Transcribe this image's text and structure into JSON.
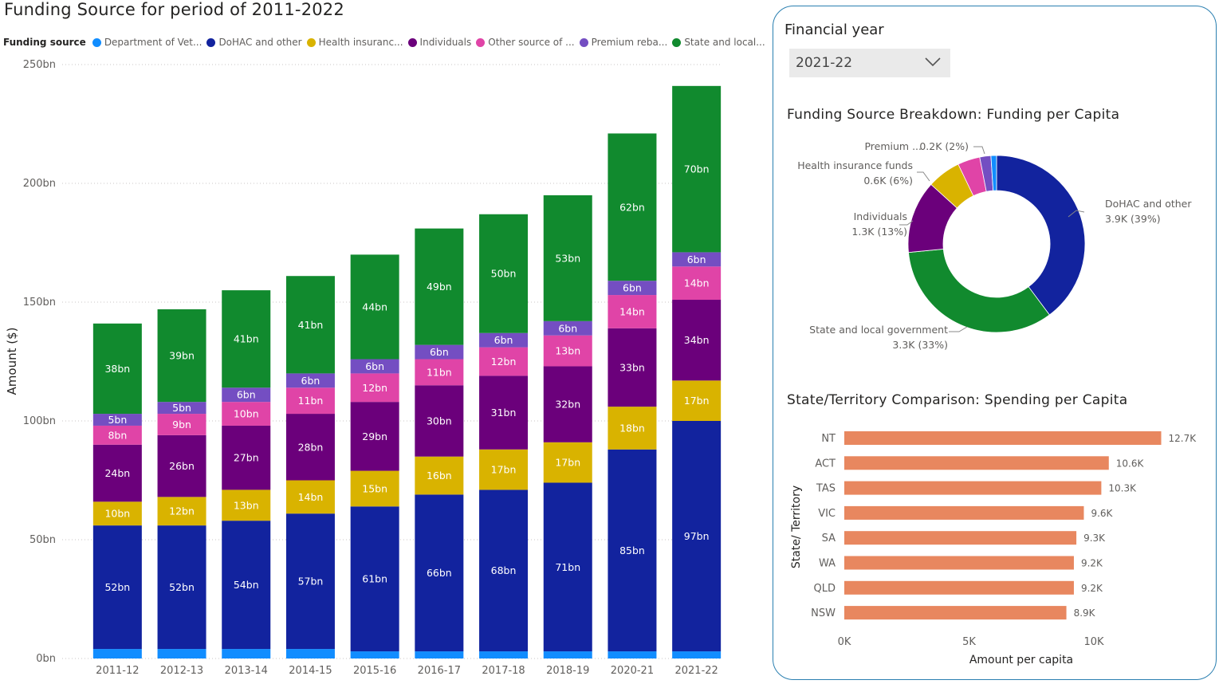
{
  "main_chart": {
    "title": "Funding Source for period of 2011-2022",
    "legend_title": "Funding source",
    "legend_labels": [
      "Department of Vet...",
      "DoHAC and other",
      "Health insuranc...",
      "Individuals",
      "Other source of ...",
      "Premium reba...",
      "State and local..."
    ],
    "y_axis_label": "Amount ($)",
    "y_ticks": [
      "0bn",
      "50bn",
      "100bn",
      "150bn",
      "200bn",
      "250bn"
    ]
  },
  "filter": {
    "label": "Financial year",
    "selected": "2021-22"
  },
  "donut": {
    "title": "Funding Source Breakdown: Funding per Capita",
    "labels": [
      {
        "name": "DoHAC and other",
        "value": "3.9K (39%)"
      },
      {
        "name": "State and local government",
        "value": "3.3K (33%)"
      },
      {
        "name": "Individuals",
        "value": "1.3K (13%)"
      },
      {
        "name": "Health insurance funds",
        "value": "0.6K (6%)"
      },
      {
        "name": "Premium ...",
        "value": "0.2K (2%)"
      }
    ]
  },
  "bar_chart": {
    "title": "State/Territory Comparison: Spending per Capita",
    "y_axis_label": "State/ Territory",
    "x_axis_label": "Amount per capita",
    "x_ticks": [
      "0K",
      "5K",
      "10K"
    ]
  },
  "chart_data": [
    {
      "type": "bar",
      "stacked": true,
      "title": "Funding Source for period of 2011-2022",
      "ylabel": "Amount ($)",
      "xlabel": "",
      "ylim": [
        0,
        250
      ],
      "unit": "bn",
      "grid": true,
      "legend": "top-left",
      "categories": [
        "2011-12",
        "2012-13",
        "2013-14",
        "2014-15",
        "2015-16",
        "2016-17",
        "2017-18",
        "2018-19",
        "2020-21",
        "2021-22"
      ],
      "series": [
        {
          "name": "Department of Vet...",
          "color": "#118dff",
          "values": [
            4,
            4,
            4,
            4,
            3,
            3,
            3,
            3,
            3,
            3
          ],
          "labels": [
            "",
            "",
            "",
            "",
            "",
            "",
            "",
            "",
            "",
            ""
          ]
        },
        {
          "name": "DoHAC and other",
          "color": "#12239e",
          "values": [
            52,
            52,
            54,
            57,
            61,
            66,
            68,
            71,
            85,
            97
          ],
          "labels": [
            "52bn",
            "52bn",
            "54bn",
            "57bn",
            "61bn",
            "66bn",
            "68bn",
            "71bn",
            "85bn",
            "97bn"
          ]
        },
        {
          "name": "Health insuranc...",
          "color": "#d9b300",
          "values": [
            10,
            12,
            13,
            14,
            15,
            16,
            17,
            17,
            18,
            17
          ],
          "labels": [
            "10bn",
            "12bn",
            "13bn",
            "14bn",
            "15bn",
            "16bn",
            "17bn",
            "17bn",
            "18bn",
            "17bn"
          ]
        },
        {
          "name": "Individuals",
          "color": "#6b007b",
          "values": [
            24,
            26,
            27,
            28,
            29,
            30,
            31,
            32,
            33,
            34
          ],
          "labels": [
            "24bn",
            "26bn",
            "27bn",
            "28bn",
            "29bn",
            "30bn",
            "31bn",
            "32bn",
            "33bn",
            "34bn"
          ]
        },
        {
          "name": "Other source of ...",
          "color": "#e044a7",
          "values": [
            8,
            9,
            10,
            11,
            12,
            11,
            12,
            13,
            14,
            14
          ],
          "labels": [
            "8bn",
            "9bn",
            "10bn",
            "11bn",
            "12bn",
            "11bn",
            "12bn",
            "13bn",
            "14bn",
            "14bn"
          ]
        },
        {
          "name": "Premium reba...",
          "color": "#744ec2",
          "values": [
            5,
            5,
            6,
            6,
            6,
            6,
            6,
            6,
            6,
            6
          ],
          "labels": [
            "5bn",
            "5bn",
            "6bn",
            "6bn",
            "6bn",
            "6bn",
            "6bn",
            "6bn",
            "6bn",
            "6bn"
          ]
        },
        {
          "name": "State and local...",
          "color": "#118a2e",
          "values": [
            38,
            39,
            41,
            41,
            44,
            49,
            50,
            53,
            62,
            70
          ],
          "labels": [
            "38bn",
            "39bn",
            "41bn",
            "41bn",
            "44bn",
            "49bn",
            "50bn",
            "53bn",
            "62bn",
            "70bn"
          ]
        }
      ]
    },
    {
      "type": "pie",
      "donut": true,
      "title": "Funding Source Breakdown: Funding per Capita",
      "slices": [
        {
          "name": "DoHAC and other",
          "value": 3.9,
          "percent": 39,
          "color": "#12239e"
        },
        {
          "name": "State and local government",
          "value": 3.3,
          "percent": 33,
          "color": "#118a2e"
        },
        {
          "name": "Individuals",
          "value": 1.3,
          "percent": 13,
          "color": "#6b007b"
        },
        {
          "name": "Health insurance funds",
          "value": 0.6,
          "percent": 6,
          "color": "#d9b300"
        },
        {
          "name": "Other source of funding",
          "value": 0.4,
          "percent": 4,
          "color": "#e044a7"
        },
        {
          "name": "Premium ...",
          "value": 0.2,
          "percent": 2,
          "color": "#744ec2"
        },
        {
          "name": "Department of Veterans' Affairs",
          "value": 0.1,
          "percent": 1,
          "color": "#118dff"
        }
      ]
    },
    {
      "type": "bar",
      "orientation": "horizontal",
      "title": "State/Territory Comparison: Spending per Capita",
      "xlabel": "Amount per capita",
      "ylabel": "State/ Territory",
      "xlim": [
        0,
        13.5
      ],
      "unit": "K",
      "color": "#e8875f",
      "categories": [
        "NT",
        "ACT",
        "TAS",
        "VIC",
        "SA",
        "WA",
        "QLD",
        "NSW"
      ],
      "values": [
        12.7,
        10.6,
        10.3,
        9.6,
        9.3,
        9.2,
        9.2,
        8.9
      ],
      "labels": [
        "12.7K",
        "10.6K",
        "10.3K",
        "9.6K",
        "9.3K",
        "9.2K",
        "9.2K",
        "8.9K"
      ]
    }
  ]
}
